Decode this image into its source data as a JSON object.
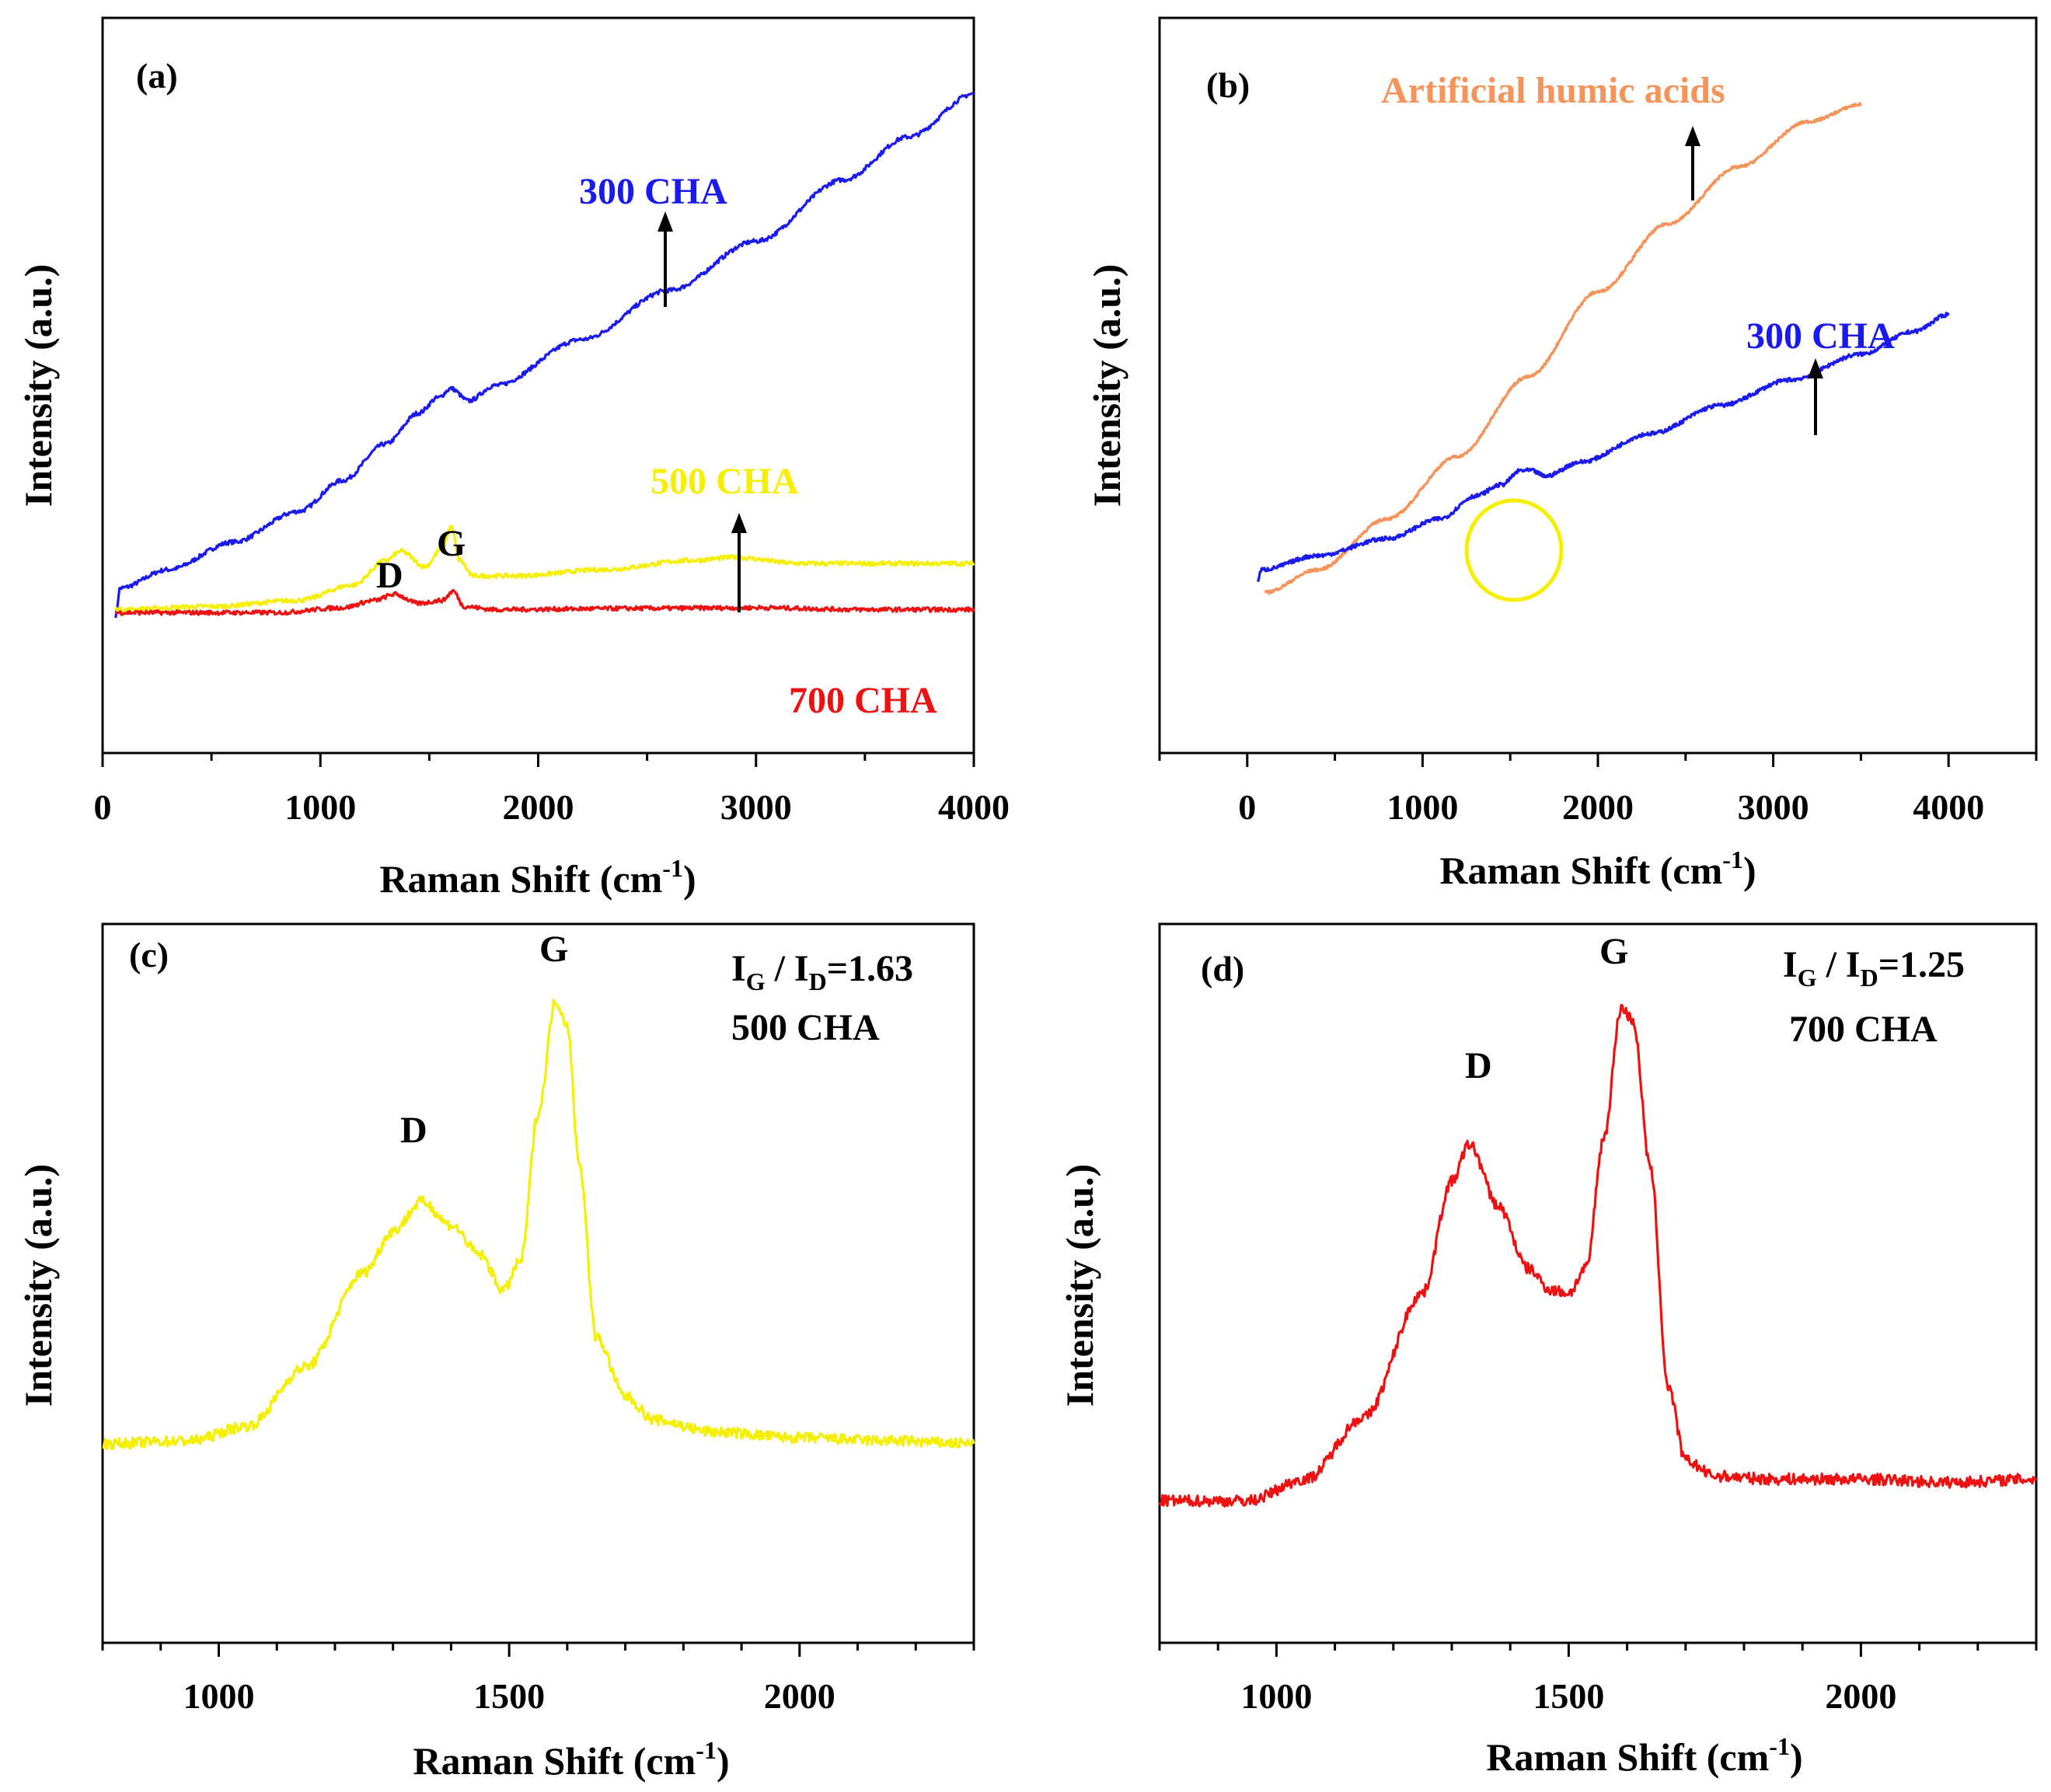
{
  "colors": {
    "blue": "#1a1aee",
    "yellow": "#f5f000",
    "red": "#ee1111",
    "orange": "#f5945a",
    "black": "#000000"
  },
  "axis_labels": {
    "intensity": "Intensity (a.u.)",
    "raman": "Raman Shift (cm",
    "raman_sup": "-1",
    "close": ")"
  },
  "chart_data": [
    {
      "panel": "(a)",
      "type": "line",
      "xlabel": "Raman Shift (cm-1)",
      "ylabel": "Intensity (a.u.)",
      "xlim": [
        0,
        4000
      ],
      "ylim": [
        0,
        100
      ],
      "xticks": [
        0,
        1000,
        2000,
        3000,
        4000
      ],
      "series": [
        {
          "name": "300 CHA",
          "color": "blue",
          "x": [
            60,
            80,
            300,
            600,
            900,
            1100,
            1300,
            1450,
            1540,
            1600,
            1680,
            1800,
            2200,
            2600,
            3000,
            3400,
            3700,
            4000
          ],
          "y": [
            13,
            17.5,
            20.5,
            25,
            30,
            35,
            41,
            46,
            48.5,
            50,
            48,
            50.5,
            58,
            66,
            74,
            84,
            91,
            98
          ]
        },
        {
          "name": "500 CHA",
          "color": "yellow",
          "x": [
            60,
            500,
            900,
            1150,
            1300,
            1370,
            1480,
            1560,
            1600,
            1640,
            1700,
            1900,
            2300,
            2700,
            2900,
            3200,
            3600,
            4000
          ],
          "y": [
            14,
            14.5,
            15.5,
            18,
            22,
            23.5,
            21,
            24,
            27.5,
            22,
            19.5,
            19.5,
            20.5,
            22,
            22.5,
            21.5,
            21.5,
            21.5
          ]
        },
        {
          "name": "700 CHA",
          "color": "red",
          "x": [
            60,
            800,
            1100,
            1250,
            1340,
            1450,
            1560,
            1610,
            1660,
            1800,
            2500,
            3000,
            3500,
            4000
          ],
          "y": [
            13.5,
            13.5,
            14.3,
            15.5,
            16.5,
            15,
            15.5,
            17,
            14.5,
            14,
            14.2,
            14.3,
            14,
            14
          ]
        }
      ],
      "annotations": [
        "300 CHA",
        "500 CHA",
        "700 CHA",
        "D",
        "G"
      ]
    },
    {
      "panel": "(b)",
      "type": "line",
      "xlabel": "Raman Shift (cm-1)",
      "ylabel": "Intensity (a.u.)",
      "xlim": [
        -500,
        4500
      ],
      "ylim": [
        0,
        100
      ],
      "xticks": [
        0,
        1000,
        2000,
        3000,
        4000
      ],
      "series": [
        {
          "name": "Artificial humic acids",
          "color": "orange",
          "x": [
            100,
            400,
            800,
            1200,
            1600,
            2000,
            2400,
            2800,
            3200,
            3500
          ],
          "y": [
            12,
            16,
            25,
            36,
            50,
            65,
            77,
            87,
            95,
            98
          ]
        },
        {
          "name": "300 CHA",
          "color": "blue",
          "x": [
            60,
            80,
            400,
            800,
            1100,
            1300,
            1450,
            1560,
            1620,
            1700,
            1900,
            2300,
            2700,
            3100,
            3500,
            3800,
            4000
          ],
          "y": [
            14,
            16,
            18.5,
            21.5,
            25,
            29,
            31,
            33.5,
            33.5,
            32.5,
            35,
            40,
            45,
            49.5,
            54,
            58,
            61
          ]
        }
      ],
      "annotations": [
        "Artificial humic acids",
        "300 CHA"
      ]
    },
    {
      "panel": "(c)",
      "type": "line",
      "xlabel": "Raman Shift (cm-1)",
      "ylabel": "Intensity (a.u.)",
      "xlim": [
        800,
        2300
      ],
      "ylim": [
        0,
        100
      ],
      "xticks": [
        1000,
        1500,
        2000
      ],
      "series": [
        {
          "name": "500 CHA",
          "color": "yellow",
          "x": [
            800,
            950,
            1050,
            1150,
            1250,
            1300,
            1350,
            1400,
            1450,
            1490,
            1520,
            1550,
            1580,
            1600,
            1620,
            1650,
            1700,
            1750,
            1850,
            2000,
            2150,
            2300
          ],
          "y": [
            22,
            22.5,
            25,
            35,
            51,
            58,
            63,
            59,
            54,
            48,
            53,
            78,
            97,
            93,
            70,
            40,
            30,
            26,
            24,
            23,
            22.5,
            22
          ]
        }
      ],
      "annotations": [
        "D",
        "G",
        "IG / ID=1.63",
        "500 CHA"
      ]
    },
    {
      "panel": "(d)",
      "type": "line",
      "xlabel": "Raman Shift (cm-1)",
      "ylabel": "Intensity (a.u.)",
      "xlim": [
        800,
        2300
      ],
      "ylim": [
        0,
        100
      ],
      "xticks": [
        1000,
        1500,
        2000
      ],
      "series": [
        {
          "name": "700 CHA",
          "color": "red",
          "x": [
            800,
            950,
            1050,
            1150,
            1250,
            1300,
            1330,
            1380,
            1430,
            1470,
            1500,
            1530,
            1560,
            1590,
            1610,
            1640,
            1670,
            1700,
            1750,
            1850,
            2000,
            2150,
            2300
          ],
          "y": [
            16.5,
            16.5,
            20,
            30,
            50,
            68,
            74,
            64,
            54,
            50.5,
            50,
            54,
            75,
            96,
            94,
            70,
            35,
            23,
            20.5,
            20,
            20,
            19.5,
            20
          ]
        }
      ],
      "annotations": [
        "D",
        "G",
        "IG / ID=1.25",
        "700 CHA"
      ]
    }
  ],
  "panels": {
    "a": {
      "tag": "(a)",
      "lbl_300": "300 CHA",
      "lbl_500": "500 CHA",
      "lbl_700": "700 CHA",
      "lbl_D": "D",
      "lbl_G": "G",
      "xticks": [
        "0",
        "1000",
        "2000",
        "3000",
        "4000"
      ]
    },
    "b": {
      "tag": "(b)",
      "lbl_ha": "Artificial humic acids",
      "lbl_300": "300 CHA",
      "xticks": [
        "0",
        "1000",
        "2000",
        "3000",
        "4000"
      ]
    },
    "c": {
      "tag": "(c)",
      "lbl_D": "D",
      "lbl_G": "G",
      "ratio_I1": "I",
      "ratio_sub1": "G",
      "ratio_mid": " / I",
      "ratio_sub2": "D",
      "ratio_val": "=1.63",
      "sample": "500 CHA",
      "xticks": [
        "1000",
        "1500",
        "2000"
      ]
    },
    "d": {
      "tag": "(d)",
      "lbl_D": "D",
      "lbl_G": "G",
      "ratio_I1": "I",
      "ratio_sub1": "G",
      "ratio_mid": " / I",
      "ratio_sub2": "D",
      "ratio_val": "=1.25",
      "sample": "700 CHA",
      "xticks": [
        "1000",
        "1500",
        "2000"
      ]
    }
  }
}
